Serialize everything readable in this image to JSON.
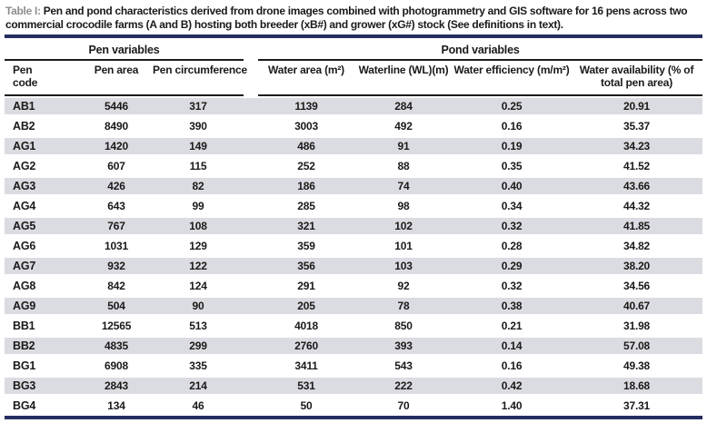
{
  "caption": {
    "label": "Table I:",
    "lines": [
      "Pen and pond characteristics derived from drone images combined with photogrammetry and GIS software for 16 pens across two",
      "commercial crocodile farms (A and B) hosting both breeder (xB#) and grower (xG#) stock (See definitions in text)."
    ]
  },
  "table": {
    "group_headers": {
      "pen": "Pen variables",
      "pond": "Pond variables"
    },
    "column_headers": {
      "pen_code": "Pen code",
      "pen_area": "Pen area",
      "pen_circumference": "Pen circumference",
      "water_area": "Water area (m²)",
      "waterline": "Waterline (WL)(m)",
      "water_efficiency": "Water efficiency (m/m²)",
      "water_availability": "Water availability (% of total pen area)"
    },
    "rows": [
      {
        "code": "AB1",
        "values": [
          "5446",
          "317",
          "1139",
          "284",
          "0.25",
          "20.91"
        ]
      },
      {
        "code": "AB2",
        "values": [
          "8490",
          "390",
          "3003",
          "492",
          "0.16",
          "35.37"
        ]
      },
      {
        "code": "AG1",
        "values": [
          "1420",
          "149",
          "486",
          "91",
          "0.19",
          "34.23"
        ]
      },
      {
        "code": "AG2",
        "values": [
          "607",
          "115",
          "252",
          "88",
          "0.35",
          "41.52"
        ]
      },
      {
        "code": "AG3",
        "values": [
          "426",
          "82",
          "186",
          "74",
          "0.40",
          "43.66"
        ]
      },
      {
        "code": "AG4",
        "values": [
          "643",
          "99",
          "285",
          "98",
          "0.34",
          "44.32"
        ]
      },
      {
        "code": "AG5",
        "values": [
          "767",
          "108",
          "321",
          "102",
          "0.32",
          "41.85"
        ]
      },
      {
        "code": "AG6",
        "values": [
          "1031",
          "129",
          "359",
          "101",
          "0.28",
          "34.82"
        ]
      },
      {
        "code": "AG7",
        "values": [
          "932",
          "122",
          "356",
          "103",
          "0.29",
          "38.20"
        ]
      },
      {
        "code": "AG8",
        "values": [
          "842",
          "124",
          "291",
          "92",
          "0.32",
          "34.56"
        ]
      },
      {
        "code": "AG9",
        "values": [
          "504",
          "90",
          "205",
          "78",
          "0.38",
          "40.67"
        ]
      },
      {
        "code": "BB1",
        "values": [
          "12565",
          "513",
          "4018",
          "850",
          "0.21",
          "31.98"
        ]
      },
      {
        "code": "BB2",
        "values": [
          "4835",
          "299",
          "2760",
          "393",
          "0.14",
          "57.08"
        ]
      },
      {
        "code": "BG1",
        "values": [
          "6908",
          "335",
          "3411",
          "543",
          "0.16",
          "49.38"
        ]
      },
      {
        "code": "BG3",
        "values": [
          "2843",
          "214",
          "531",
          "222",
          "0.42",
          "18.68"
        ]
      },
      {
        "code": "BG4",
        "values": [
          "134",
          "46",
          "50",
          "70",
          "1.40",
          "37.31"
        ]
      }
    ]
  },
  "colors": {
    "rule_navy": "#252e5f",
    "rule_thin": "#1c1c1c",
    "row_shade": "#dbdbe2",
    "caption_label_gray": "#8d8d8d"
  }
}
